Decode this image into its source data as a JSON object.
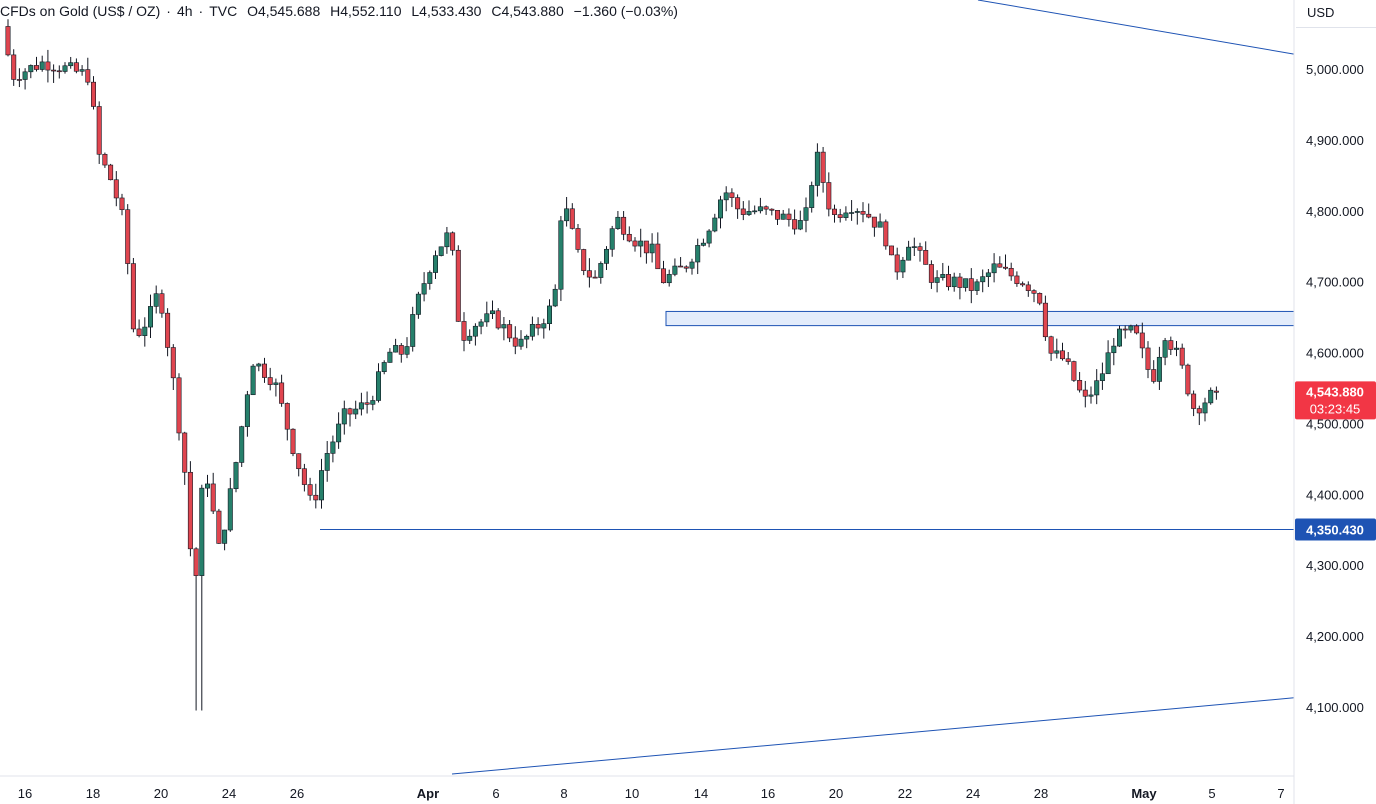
{
  "header": {
    "symbol": "CFDs on Gold (US$ / OZ)",
    "interval": "4h",
    "source": "TVC",
    "open": "O4,545.688",
    "high": "H4,552.110",
    "low": "L4,533.430",
    "close": "C4,543.880",
    "change": "−1.360 (−0.03%)"
  },
  "currency": "USD",
  "price_tag": {
    "price": "4,543.880",
    "countdown": "03:23:45",
    "color": "#f23645"
  },
  "support_tag": {
    "price": "4,350.430",
    "color": "#1e53b4"
  },
  "colors": {
    "up": "#26806b",
    "down": "#e0454f",
    "wick": "#131722",
    "line": "#1e53b4",
    "zone_fill": "#e3ecfb",
    "zone_stroke": "#1e53b4",
    "axis_text": "#131722",
    "axis_line": "#e0e3eb"
  },
  "chart_data": {
    "type": "candlestick",
    "title": "CFDs on Gold (US$ / OZ) · 4h · TVC",
    "y_ticks": [
      "4,100.000",
      "4,200.000",
      "4,300.000",
      "4,400.000",
      "4,500.000",
      "4,600.000",
      "4,700.000",
      "4,800.000",
      "4,900.000",
      "5,000.000"
    ],
    "y_tick_values": [
      4100,
      4200,
      4300,
      4400,
      4500,
      4600,
      4700,
      4800,
      4900,
      5000
    ],
    "x_ticks": [
      "16",
      "18",
      "20",
      "24",
      "26",
      "Apr",
      "6",
      "8",
      "10",
      "14",
      "16",
      "20",
      "22",
      "24",
      "28",
      "May",
      "5",
      "7"
    ],
    "ylim": [
      4005,
      5095
    ],
    "key_points": [
      {
        "label": "session high near top-left",
        "value": 5060
      },
      {
        "label": "major low",
        "value": 4095
      },
      {
        "label": "April high",
        "value": 4890
      },
      {
        "label": "last close",
        "value": 4543.88
      }
    ],
    "horizontal_line": {
      "price": 4350.43,
      "from_tick": "26",
      "to": "right axis"
    },
    "zone": {
      "top": 4658,
      "bottom": 4638,
      "from_tick": "10",
      "to": "right axis"
    },
    "trendlines": [
      {
        "from": {
          "x_tick": "Apr",
          "price": 5150
        },
        "to": {
          "x_tick": "right axis",
          "price": 5021
        }
      },
      {
        "from": {
          "x_tick": "Apr",
          "price": 4080
        },
        "to": {
          "x_tick": "right axis",
          "price": 4113
        }
      }
    ],
    "last": {
      "open": 4545.688,
      "high": 4552.11,
      "low": 4533.43,
      "close": 4543.88
    }
  }
}
